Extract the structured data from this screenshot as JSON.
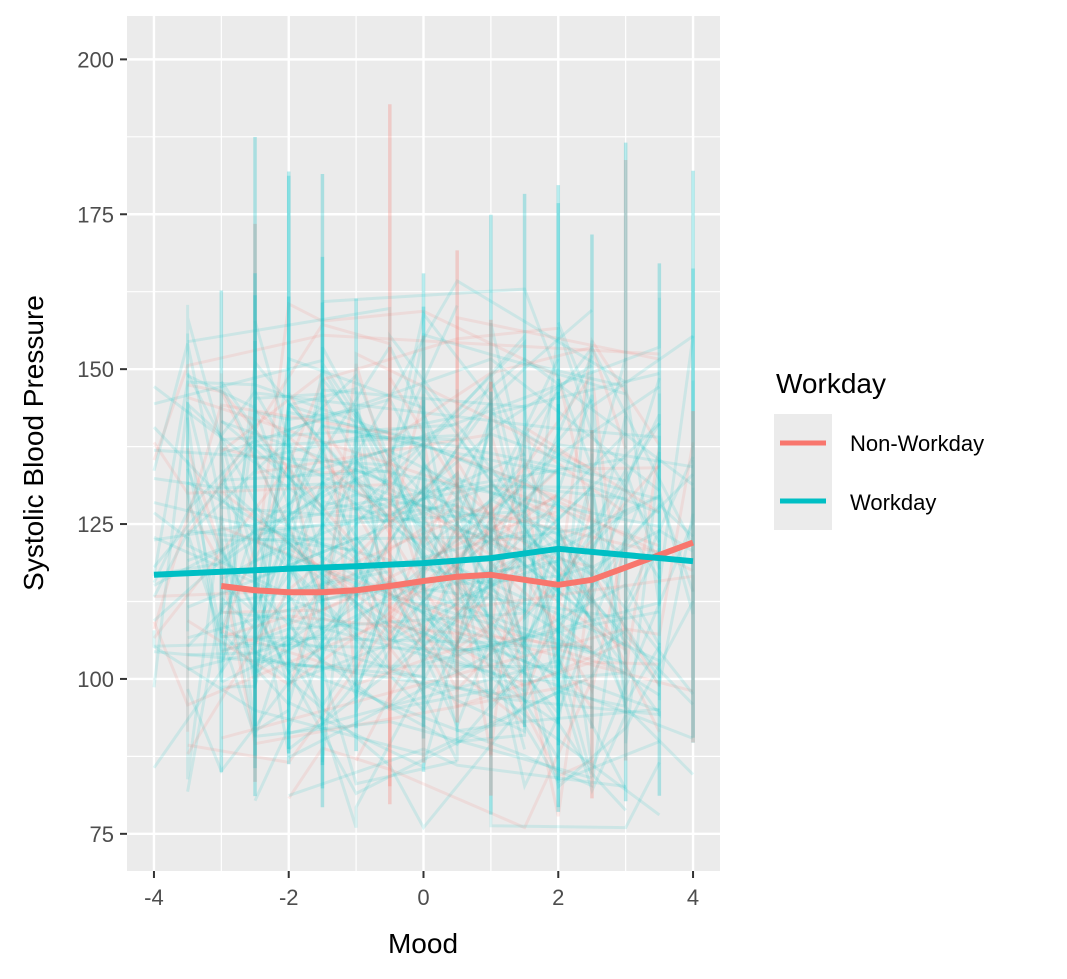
{
  "chart_data": {
    "type": "line",
    "xlabel": "Mood",
    "ylabel": "Systolic Blood Pressure",
    "xlim": [
      -4.4,
      4.4
    ],
    "ylim": [
      69,
      207
    ],
    "x_ticks": [
      -4,
      -2,
      0,
      2,
      4
    ],
    "x_tick_labels": [
      "-4",
      "-2",
      "0",
      "2",
      "4"
    ],
    "y_ticks": [
      75,
      100,
      125,
      150,
      175,
      200
    ],
    "y_tick_labels": [
      "75",
      "100",
      "125",
      "150",
      "175",
      "200"
    ],
    "grid": true,
    "legend": {
      "title": "Workday",
      "position": "right",
      "entries": [
        "Non-Workday",
        "Workday"
      ]
    },
    "series": [
      {
        "name": "Non-Workday",
        "color": "#F8766D",
        "x": [
          -3,
          -2.5,
          -2,
          -1.5,
          -1,
          -0.5,
          0,
          0.5,
          1,
          1.5,
          2,
          2.5,
          3,
          3.5,
          4
        ],
        "values": [
          115,
          114.3,
          114,
          114,
          114.3,
          115,
          115.8,
          116.5,
          116.8,
          116,
          115.2,
          116,
          118,
          120,
          122
        ]
      },
      {
        "name": "Workday",
        "color": "#00BFC4",
        "x": [
          -4,
          -3,
          -2,
          -1,
          0,
          1,
          2,
          3,
          4
        ],
        "values": [
          116.8,
          117.3,
          117.8,
          118.2,
          118.7,
          119.5,
          121,
          120,
          119
        ]
      }
    ]
  }
}
